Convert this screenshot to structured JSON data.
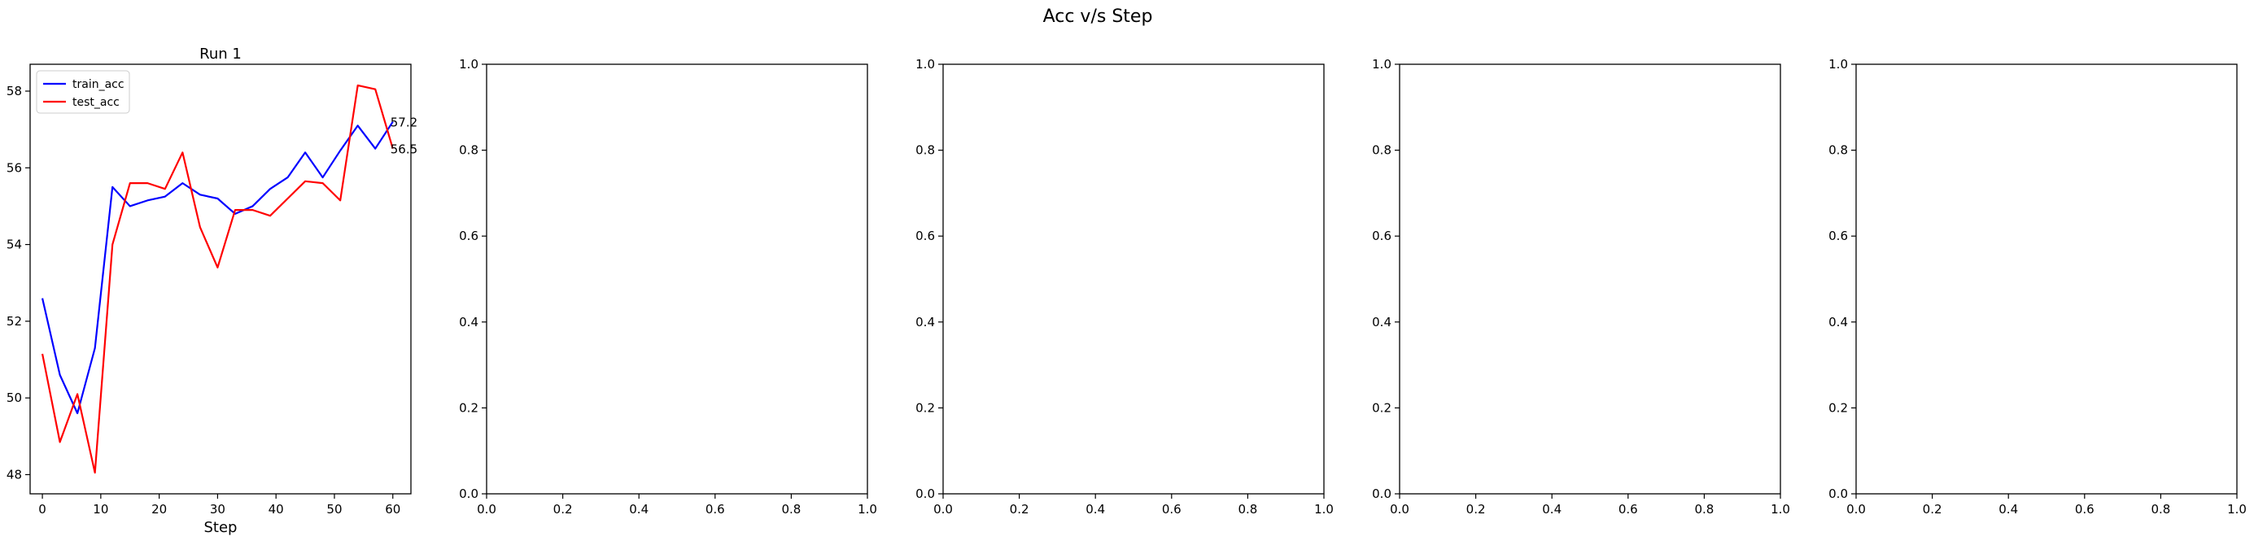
{
  "figure": {
    "suptitle": "Acc v/s Step"
  },
  "chart_data": [
    {
      "type": "line",
      "title": "Run 1",
      "xlabel": "Step",
      "ylabel": "",
      "xlim": [
        -2.1,
        63.1
      ],
      "ylim": [
        47.5,
        58.7
      ],
      "xticks": [
        0,
        10,
        20,
        30,
        40,
        50,
        60
      ],
      "xtick_labels": [
        "0",
        "10",
        "20",
        "30",
        "40",
        "50",
        "60"
      ],
      "yticks": [
        48,
        50,
        52,
        54,
        56,
        58
      ],
      "ytick_labels": [
        "48",
        "50",
        "52",
        "54",
        "56",
        "58"
      ],
      "grid": false,
      "legend": "top-left",
      "series": [
        {
          "name": "train_acc",
          "color": "#0000ff",
          "x": [
            0,
            3,
            6,
            9,
            12,
            15,
            18,
            21,
            24,
            27,
            30,
            33,
            36,
            39,
            42,
            45,
            48,
            51,
            54,
            57,
            60
          ],
          "values": [
            52.6,
            50.6,
            49.6,
            51.3,
            55.5,
            55.0,
            55.15,
            55.25,
            55.6,
            55.3,
            55.2,
            54.8,
            55.0,
            55.45,
            55.75,
            56.4,
            55.75,
            56.45,
            57.1,
            56.5,
            57.2
          ],
          "end_label": "57.2"
        },
        {
          "name": "test_acc",
          "color": "#ff0000",
          "x": [
            0,
            3,
            6,
            9,
            12,
            15,
            18,
            21,
            24,
            27,
            30,
            33,
            36,
            39,
            42,
            45,
            48,
            51,
            54,
            57,
            60
          ],
          "values": [
            51.15,
            48.85,
            50.1,
            48.05,
            54.0,
            55.6,
            55.6,
            55.45,
            56.4,
            54.45,
            53.4,
            54.9,
            54.9,
            54.75,
            55.2,
            55.65,
            55.6,
            55.15,
            58.15,
            58.05,
            56.5
          ],
          "end_label": "56.5"
        }
      ]
    },
    {
      "type": "line",
      "title": "",
      "xlabel": "",
      "ylabel": "",
      "xlim": [
        0,
        1
      ],
      "ylim": [
        0,
        1
      ],
      "xticks": [
        0,
        0.2,
        0.4,
        0.6,
        0.8,
        1.0
      ],
      "xtick_labels": [
        "0.0",
        "0.2",
        "0.4",
        "0.6",
        "0.8",
        "1.0"
      ],
      "yticks": [
        0,
        0.2,
        0.4,
        0.6,
        0.8,
        1.0
      ],
      "ytick_labels": [
        "0.0",
        "0.2",
        "0.4",
        "0.6",
        "0.8",
        "1.0"
      ],
      "series": []
    },
    {
      "type": "line",
      "title": "",
      "xlabel": "",
      "ylabel": "",
      "xlim": [
        0,
        1
      ],
      "ylim": [
        0,
        1
      ],
      "xticks": [
        0,
        0.2,
        0.4,
        0.6,
        0.8,
        1.0
      ],
      "xtick_labels": [
        "0.0",
        "0.2",
        "0.4",
        "0.6",
        "0.8",
        "1.0"
      ],
      "yticks": [
        0,
        0.2,
        0.4,
        0.6,
        0.8,
        1.0
      ],
      "ytick_labels": [
        "0.0",
        "0.2",
        "0.4",
        "0.6",
        "0.8",
        "1.0"
      ],
      "series": []
    },
    {
      "type": "line",
      "title": "",
      "xlabel": "",
      "ylabel": "",
      "xlim": [
        0,
        1
      ],
      "ylim": [
        0,
        1
      ],
      "xticks": [
        0,
        0.2,
        0.4,
        0.6,
        0.8,
        1.0
      ],
      "xtick_labels": [
        "0.0",
        "0.2",
        "0.4",
        "0.6",
        "0.8",
        "1.0"
      ],
      "yticks": [
        0,
        0.2,
        0.4,
        0.6,
        0.8,
        1.0
      ],
      "ytick_labels": [
        "0.0",
        "0.2",
        "0.4",
        "0.6",
        "0.8",
        "1.0"
      ],
      "series": []
    },
    {
      "type": "line",
      "title": "",
      "xlabel": "",
      "ylabel": "",
      "xlim": [
        0,
        1
      ],
      "ylim": [
        0,
        1
      ],
      "xticks": [
        0,
        0.2,
        0.4,
        0.6,
        0.8,
        1.0
      ],
      "xtick_labels": [
        "0.0",
        "0.2",
        "0.4",
        "0.6",
        "0.8",
        "1.0"
      ],
      "yticks": [
        0,
        0.2,
        0.4,
        0.6,
        0.8,
        1.0
      ],
      "ytick_labels": [
        "0.0",
        "0.2",
        "0.4",
        "0.6",
        "0.8",
        "1.0"
      ],
      "series": []
    }
  ]
}
